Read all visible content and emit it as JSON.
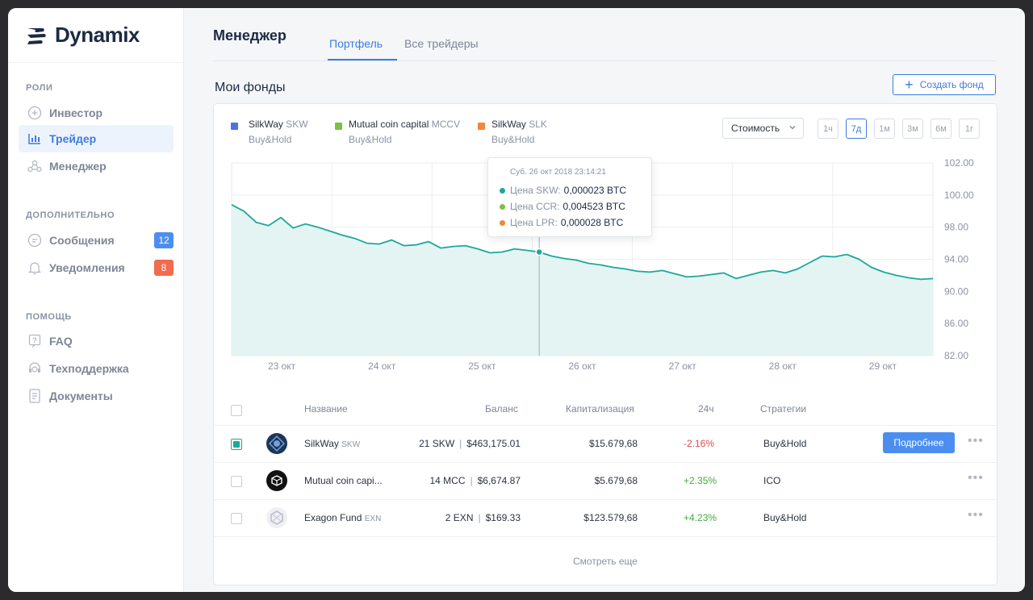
{
  "app": {
    "name": "Dynamix"
  },
  "sidebar": {
    "sections": [
      {
        "title": "Роли",
        "items": [
          {
            "label": "Инвестор",
            "icon": "plus-circle-icon",
            "active": false
          },
          {
            "label": "Трейдер",
            "icon": "bar-chart-icon",
            "active": true
          },
          {
            "label": "Менеджер",
            "icon": "network-icon",
            "active": false
          }
        ]
      },
      {
        "title": "Дополнительно",
        "items": [
          {
            "label": "Сообщения",
            "icon": "message-icon",
            "badge": "12",
            "badge_color": "#4b8ef0"
          },
          {
            "label": "Уведомления",
            "icon": "bell-icon",
            "badge": "8",
            "badge_color": "#f26a4f"
          }
        ]
      },
      {
        "title": "Помощь",
        "items": [
          {
            "label": "FAQ",
            "icon": "faq-icon"
          },
          {
            "label": "Техподдержка",
            "icon": "support-icon"
          },
          {
            "label": "Документы",
            "icon": "document-icon"
          }
        ]
      }
    ]
  },
  "header": {
    "title": "Менеджер",
    "tabs": [
      {
        "label": "Портфель",
        "active": true
      },
      {
        "label": "Все трейдеры",
        "active": false
      }
    ]
  },
  "funds": {
    "title": "Мои фонды",
    "create_label": "Создать фонд",
    "legend": [
      {
        "name": "SilkWay",
        "ticker": "SKW",
        "strategy": "Buy&Hold",
        "color": "#4b72e0"
      },
      {
        "name": "Mutual coin capital",
        "ticker": "MCCV",
        "strategy": "Buy&Hold",
        "color": "#7bc142"
      },
      {
        "name": "SilkWay",
        "ticker": "SLK",
        "strategy": "Buy&Hold",
        "color": "#f2873a"
      }
    ],
    "metric_select": "Стоимость",
    "periods": [
      "1ч",
      "7д",
      "1м",
      "3м",
      "6м",
      "1г"
    ],
    "active_period": "7д",
    "tooltip": {
      "date": "Суб. 26 окт 2018  23:14:21",
      "rows": [
        {
          "label": "Цена SKW:",
          "value": "0,000023 BTC",
          "color": "#1ea79b"
        },
        {
          "label": "Цена CCR:",
          "value": "0,004523 BTC",
          "color": "#7bc142"
        },
        {
          "label": "Цена LPR:",
          "value": "0,000028 BTC",
          "color": "#f2873a"
        }
      ]
    },
    "table": {
      "headers": [
        "Название",
        "Баланс",
        "Капитализация",
        "24ч",
        "Стратегии"
      ],
      "rows": [
        {
          "name": "SilkWay",
          "ticker": "SKW",
          "balance_units": "21 SKW",
          "balance_usd": "$463,175.01",
          "cap": "$15.679,68",
          "change": "-2.16%",
          "strategy": "Buy&Hold",
          "checked": true,
          "action": "Подробнее"
        },
        {
          "name": "Mutual coin capi...",
          "ticker": "",
          "balance_units": "14 MCC",
          "balance_usd": "$6,674.87",
          "cap": "$5.679,68",
          "change": "+2.35%",
          "strategy": "ICO",
          "checked": false
        },
        {
          "name": "Exagon Fund",
          "ticker": "EXN",
          "balance_units": "2 EXN",
          "balance_usd": "$169.33",
          "cap": "$123.579,68",
          "change": "+4.23%",
          "strategy": "Buy&Hold",
          "checked": false
        }
      ],
      "show_more": "Смотреть еще"
    }
  },
  "chart_data": {
    "type": "area",
    "x_ticks": [
      "23 окт",
      "24 окт",
      "25 окт",
      "26 окт",
      "27 окт",
      "28 окт",
      "29 окт"
    ],
    "y_ticks": [
      "102.00",
      "100.00",
      "98.00",
      "94.00",
      "90.00",
      "86.00",
      "82.00"
    ],
    "series": [
      {
        "ticker": "SKW",
        "color": "#1ea79b",
        "values": [
          99.4,
          99.0,
          98.3,
          98.1,
          98.6,
          97.9,
          98.2,
          98.0,
          97.5,
          97.0,
          96.6,
          96.0,
          95.9,
          96.4,
          95.7,
          95.8,
          96.2,
          95.4,
          95.6,
          95.7,
          95.3,
          94.8,
          94.9,
          95.3,
          95.1,
          94.9,
          94.4,
          94.1,
          93.9,
          93.5,
          93.3,
          93.0,
          92.8,
          92.5,
          92.4,
          92.6,
          92.2,
          91.8,
          91.9,
          92.1,
          92.3,
          91.6,
          92.0,
          92.4,
          92.6,
          92.3,
          92.8,
          93.6,
          94.4,
          94.3,
          94.6,
          94.0,
          93.0,
          92.4,
          92.0,
          91.7,
          91.5,
          91.6
        ]
      }
    ]
  }
}
